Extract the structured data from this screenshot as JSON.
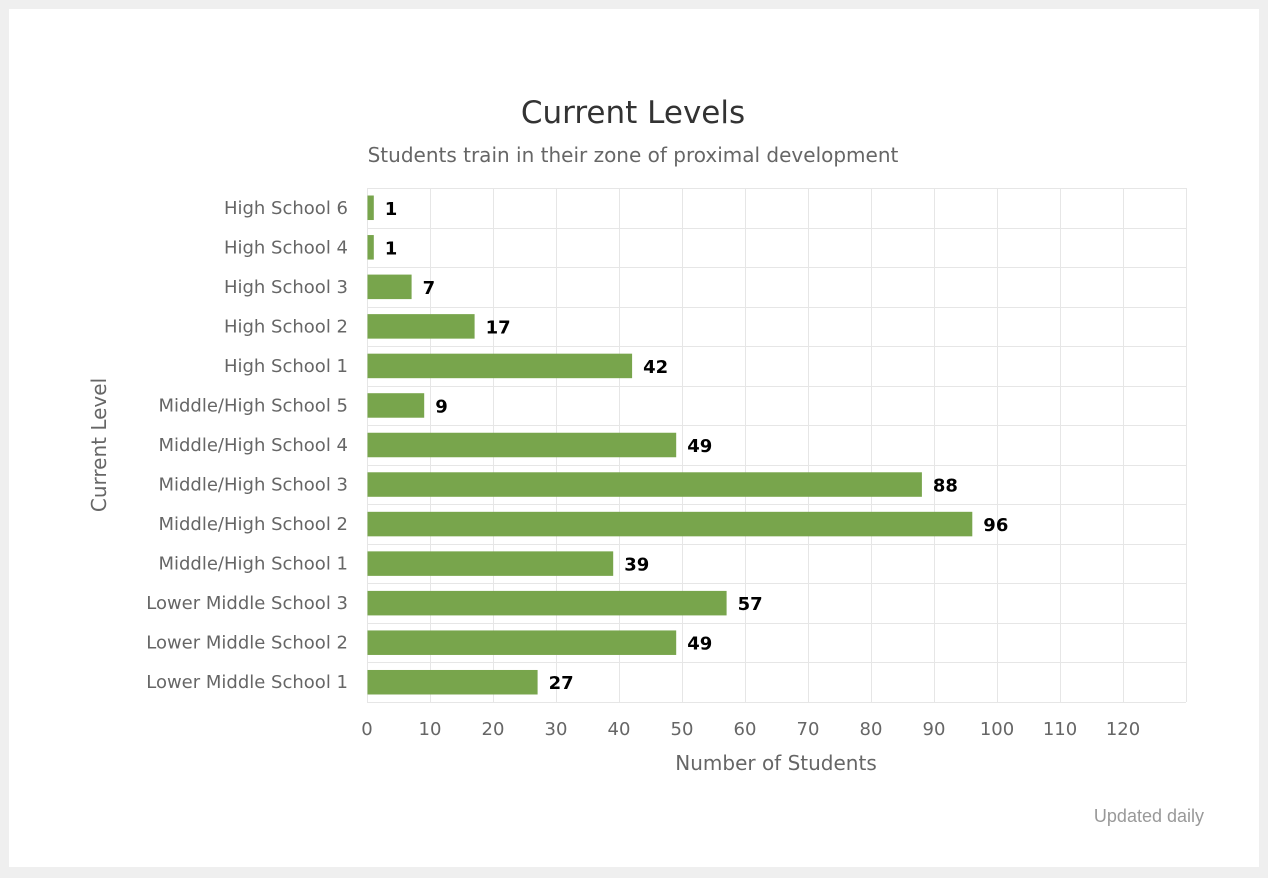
{
  "chart_data": {
    "type": "bar",
    "orientation": "horizontal",
    "title": "Current Levels",
    "subtitle": "Students train in their zone of proximal development",
    "xlabel": "Number of Students",
    "ylabel": "Current Level",
    "categories": [
      "High School 6",
      "High School 4",
      "High School 3",
      "High School 2",
      "High School 1",
      "Middle/High School 5",
      "Middle/High School 4",
      "Middle/High School 3",
      "Middle/High School 2",
      "Middle/High School 1",
      "Lower Middle School 3",
      "Lower Middle School 2",
      "Lower Middle School 1"
    ],
    "values": [
      1,
      1,
      7,
      17,
      42,
      9,
      49,
      88,
      96,
      39,
      57,
      49,
      27
    ],
    "xlim": [
      0,
      130
    ],
    "xticks": [
      "0",
      "10",
      "20",
      "30",
      "40",
      "50",
      "60",
      "70",
      "80",
      "90",
      "100",
      "110",
      "120"
    ],
    "grid": true,
    "legend": "none",
    "bar_color": "#78a54c"
  },
  "credit": "Updated daily"
}
